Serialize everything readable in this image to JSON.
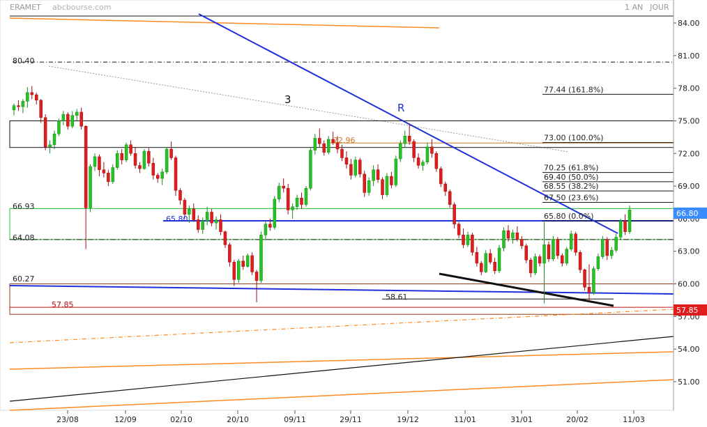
{
  "header": {
    "title": "ERAMET",
    "source": "abcbourse.com",
    "period": "1 AN",
    "interval": "JOUR"
  },
  "colors": {
    "up": "#27c227",
    "down": "#e01c1c",
    "trend_blue": "#1f2fdc",
    "orange": "#ff8a20",
    "black": "#111111",
    "last_price_bg": "#3b8cff",
    "support_red_bg": "#e01c1c"
  },
  "chart_data": {
    "type": "candlestick",
    "ylim": [
      48.6,
      86.0
    ],
    "x_tick_labels": [
      "23/08",
      "12/09",
      "02/10",
      "20/10",
      "09/11",
      "29/11",
      "19/12",
      "11/01",
      "31/01",
      "20/02",
      "11/03"
    ],
    "y_tick_values": [
      "84.00",
      "81.00",
      "78.00",
      "75.00",
      "72.00",
      "69.00",
      "66.00",
      "63.00",
      "60.00",
      "57.00",
      "54.00",
      "51.00"
    ],
    "last_price": "66.80",
    "support_label": "57.85",
    "annotations": {
      "level_80_40": "80.40",
      "level_66_93": "66.93",
      "level_65_80_left": "65.80",
      "level_64_08": "64.08",
      "level_60_27": "60.27",
      "level_57_85": "57.85",
      "level_72_96": "72.96",
      "level_58_61": "58.61",
      "wave_3": "3",
      "wave_R": "R"
    },
    "fibonacci": [
      {
        "label": "77.44 (161.8%)",
        "value": 77.44
      },
      {
        "label": "73.00 (100.0%)",
        "value": 73.0
      },
      {
        "label": "70.25 (61.8%)",
        "value": 70.25
      },
      {
        "label": "69.40 (50.0%)",
        "value": 69.4
      },
      {
        "label": "68.55 (38.2%)",
        "value": 68.55
      },
      {
        "label": "67.50 (23.6%)",
        "value": 67.5
      },
      {
        "label": "65.80 (0.0%)",
        "value": 65.8
      }
    ],
    "candles": [
      [
        76.0,
        76.6,
        75.5,
        76.4
      ],
      [
        76.4,
        76.9,
        75.9,
        76.3
      ],
      [
        76.3,
        77.0,
        75.7,
        76.8
      ],
      [
        76.8,
        78.1,
        76.2,
        77.6
      ],
      [
        77.6,
        78.2,
        77.0,
        77.4
      ],
      [
        77.4,
        77.6,
        76.5,
        76.9
      ],
      [
        76.9,
        77.0,
        74.8,
        75.3
      ],
      [
        75.3,
        75.6,
        72.3,
        72.6
      ],
      [
        72.6,
        73.2,
        72.0,
        72.8
      ],
      [
        72.8,
        74.1,
        72.4,
        73.8
      ],
      [
        73.8,
        75.2,
        73.6,
        75.0
      ],
      [
        75.0,
        75.9,
        74.6,
        75.6
      ],
      [
        75.6,
        75.8,
        74.2,
        74.5
      ],
      [
        74.5,
        75.9,
        74.3,
        75.5
      ],
      [
        75.5,
        76.1,
        75.0,
        75.8
      ],
      [
        75.8,
        76.2,
        74.2,
        74.5
      ],
      [
        74.5,
        74.6,
        63.2,
        67.0
      ],
      [
        67.0,
        71.0,
        66.6,
        70.8
      ],
      [
        70.8,
        72.0,
        70.4,
        71.7
      ],
      [
        71.7,
        71.9,
        69.9,
        70.5
      ],
      [
        70.5,
        71.2,
        69.8,
        70.2
      ],
      [
        70.2,
        70.5,
        69.0,
        69.4
      ],
      [
        69.4,
        71.0,
        69.2,
        70.7
      ],
      [
        70.7,
        72.3,
        70.5,
        72.0
      ],
      [
        72.0,
        72.4,
        71.0,
        71.4
      ],
      [
        71.4,
        73.0,
        71.2,
        72.8
      ],
      [
        72.8,
        73.2,
        71.8,
        72.0
      ],
      [
        72.0,
        72.6,
        70.6,
        70.9
      ],
      [
        70.9,
        71.2,
        70.2,
        70.6
      ],
      [
        70.6,
        72.4,
        70.5,
        72.2
      ],
      [
        72.2,
        72.5,
        70.8,
        71.1
      ],
      [
        71.1,
        71.6,
        69.6,
        70.0
      ],
      [
        70.0,
        70.2,
        69.3,
        69.7
      ],
      [
        69.7,
        70.6,
        69.1,
        70.3
      ],
      [
        70.3,
        72.6,
        70.1,
        72.4
      ],
      [
        72.4,
        73.1,
        71.4,
        71.6
      ],
      [
        71.6,
        71.8,
        68.1,
        68.6
      ],
      [
        68.6,
        68.8,
        67.3,
        67.7
      ],
      [
        67.7,
        67.9,
        66.0,
        66.4
      ],
      [
        66.4,
        67.2,
        65.6,
        66.9
      ],
      [
        66.9,
        67.4,
        65.7,
        65.9
      ],
      [
        65.9,
        66.3,
        64.7,
        65.0
      ],
      [
        65.0,
        66.1,
        64.6,
        65.8
      ],
      [
        65.8,
        67.1,
        65.4,
        66.6
      ],
      [
        66.6,
        66.9,
        65.3,
        65.6
      ],
      [
        65.6,
        66.2,
        65.0,
        65.9
      ],
      [
        65.9,
        66.4,
        64.5,
        64.8
      ],
      [
        64.8,
        64.9,
        63.3,
        63.6
      ],
      [
        63.6,
        63.8,
        61.6,
        62.0
      ],
      [
        62.0,
        62.2,
        59.8,
        60.4
      ],
      [
        60.4,
        62.3,
        60.1,
        62.1
      ],
      [
        62.1,
        62.6,
        61.3,
        61.6
      ],
      [
        61.6,
        62.8,
        61.5,
        62.6
      ],
      [
        62.6,
        62.9,
        60.8,
        61.1
      ],
      [
        61.1,
        61.3,
        58.3,
        60.3
      ],
      [
        60.3,
        64.8,
        60.1,
        64.5
      ],
      [
        64.5,
        65.8,
        64.0,
        65.5
      ],
      [
        65.5,
        66.0,
        64.9,
        65.2
      ],
      [
        65.2,
        68.1,
        65.0,
        67.8
      ],
      [
        67.8,
        69.3,
        67.5,
        69.0
      ],
      [
        69.0,
        69.7,
        68.4,
        68.8
      ],
      [
        68.8,
        69.2,
        66.4,
        66.8
      ],
      [
        66.8,
        67.4,
        66.0,
        67.1
      ],
      [
        67.1,
        68.2,
        66.8,
        67.9
      ],
      [
        67.9,
        68.4,
        66.9,
        67.3
      ],
      [
        67.3,
        69.0,
        67.1,
        68.8
      ],
      [
        68.8,
        72.5,
        68.6,
        72.3
      ],
      [
        72.3,
        73.8,
        71.9,
        73.4
      ],
      [
        73.4,
        74.3,
        72.6,
        72.9
      ],
      [
        72.9,
        73.2,
        71.8,
        72.1
      ],
      [
        72.1,
        73.6,
        71.9,
        73.3
      ],
      [
        73.3,
        74.0,
        72.8,
        73.0
      ],
      [
        73.0,
        73.6,
        72.0,
        72.4
      ],
      [
        72.4,
        72.8,
        71.3,
        71.6
      ],
      [
        71.6,
        72.2,
        70.6,
        71.0
      ],
      [
        71.0,
        71.5,
        69.6,
        70.0
      ],
      [
        70.0,
        71.7,
        69.8,
        71.4
      ],
      [
        71.4,
        71.6,
        69.8,
        70.1
      ],
      [
        70.1,
        70.4,
        68.0,
        68.4
      ],
      [
        68.4,
        69.8,
        68.1,
        69.5
      ],
      [
        69.5,
        70.9,
        69.0,
        70.5
      ],
      [
        70.5,
        71.0,
        69.3,
        69.6
      ],
      [
        69.6,
        69.8,
        67.8,
        68.2
      ],
      [
        68.2,
        70.2,
        68.0,
        69.9
      ],
      [
        69.9,
        70.3,
        68.8,
        69.1
      ],
      [
        69.1,
        71.8,
        68.9,
        71.5
      ],
      [
        71.5,
        73.2,
        71.2,
        72.9
      ],
      [
        72.9,
        74.1,
        72.5,
        73.6
      ],
      [
        73.6,
        74.7,
        72.8,
        73.1
      ],
      [
        73.1,
        73.3,
        71.2,
        71.6
      ],
      [
        71.6,
        72.0,
        70.6,
        70.9
      ],
      [
        70.9,
        71.4,
        70.4,
        71.2
      ],
      [
        71.2,
        73.0,
        71.0,
        72.6
      ],
      [
        72.6,
        73.3,
        71.6,
        72.0
      ],
      [
        72.0,
        72.2,
        70.3,
        70.6
      ],
      [
        70.6,
        70.8,
        68.9,
        69.2
      ],
      [
        69.2,
        69.4,
        68.1,
        68.5
      ],
      [
        68.5,
        68.7,
        67.0,
        67.3
      ],
      [
        67.3,
        67.5,
        65.1,
        65.5
      ],
      [
        65.5,
        65.7,
        64.2,
        64.5
      ],
      [
        64.5,
        65.1,
        63.3,
        63.6
      ],
      [
        63.6,
        64.8,
        63.4,
        64.5
      ],
      [
        64.5,
        64.7,
        62.6,
        62.9
      ],
      [
        62.9,
        63.4,
        61.6,
        61.9
      ],
      [
        61.9,
        62.1,
        60.8,
        61.1
      ],
      [
        61.1,
        63.1,
        61.0,
        62.8
      ],
      [
        62.8,
        63.2,
        61.8,
        62.0
      ],
      [
        62.0,
        62.4,
        60.9,
        61.2
      ],
      [
        61.2,
        63.6,
        61.0,
        63.3
      ],
      [
        63.3,
        65.2,
        63.0,
        64.9
      ],
      [
        64.9,
        65.4,
        63.9,
        64.2
      ],
      [
        64.2,
        65.0,
        63.7,
        64.7
      ],
      [
        64.7,
        65.3,
        63.9,
        64.1
      ],
      [
        64.1,
        64.4,
        63.2,
        63.5
      ],
      [
        63.5,
        63.7,
        61.9,
        62.2
      ],
      [
        62.2,
        62.4,
        60.6,
        61.0
      ],
      [
        61.0,
        62.8,
        60.8,
        62.5
      ],
      [
        62.5,
        62.7,
        61.6,
        61.9
      ],
      [
        61.9,
        65.7,
        58.2,
        63.6
      ],
      [
        63.6,
        63.9,
        62.0,
        62.3
      ],
      [
        62.3,
        64.4,
        62.1,
        64.1
      ],
      [
        64.1,
        64.3,
        62.3,
        62.6
      ],
      [
        62.6,
        62.8,
        61.6,
        61.9
      ],
      [
        61.9,
        63.4,
        61.7,
        63.2
      ],
      [
        63.2,
        64.9,
        63.0,
        64.6
      ],
      [
        64.6,
        64.8,
        62.6,
        62.9
      ],
      [
        62.9,
        63.1,
        61.0,
        61.3
      ],
      [
        61.3,
        61.4,
        59.4,
        59.7
      ],
      [
        59.7,
        61.8,
        58.4,
        59.2
      ],
      [
        59.2,
        61.6,
        59.0,
        61.4
      ],
      [
        61.4,
        62.8,
        61.2,
        62.5
      ],
      [
        62.5,
        64.4,
        62.3,
        64.1
      ],
      [
        64.1,
        64.3,
        62.2,
        62.6
      ],
      [
        62.6,
        63.4,
        62.3,
        63.1
      ],
      [
        63.1,
        64.6,
        62.9,
        64.3
      ],
      [
        64.3,
        66.0,
        64.1,
        65.8
      ],
      [
        65.8,
        66.4,
        64.5,
        64.8
      ],
      [
        64.8,
        67.2,
        64.6,
        66.8
      ]
    ]
  }
}
